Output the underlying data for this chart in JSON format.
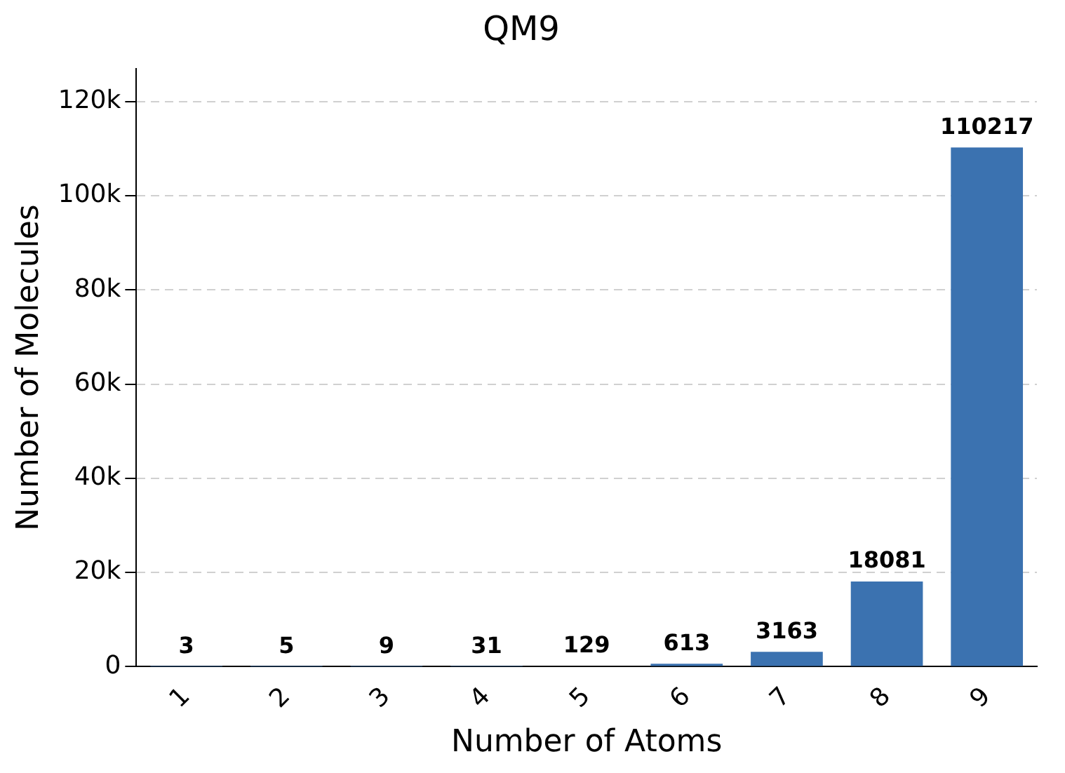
{
  "chart_data": {
    "type": "bar",
    "title": "QM9",
    "xlabel": "Number of Atoms",
    "ylabel": "Number of Molecules",
    "categories": [
      "1",
      "2",
      "3",
      "4",
      "5",
      "6",
      "7",
      "8",
      "9"
    ],
    "values": [
      3,
      5,
      9,
      31,
      129,
      613,
      3163,
      18081,
      110217
    ],
    "color": "#3b72b0",
    "ylim": [
      0,
      127000
    ],
    "yticks": [
      0,
      {
        "value": 20000,
        "label": "20k"
      },
      {
        "value": 40000,
        "label": "40k"
      },
      {
        "value": 60000,
        "label": "60k"
      },
      {
        "value": 80000,
        "label": "80k"
      },
      {
        "value": 100000,
        "label": "100k"
      },
      {
        "value": 120000,
        "label": "120k"
      }
    ],
    "grid": "y",
    "data_labels": true,
    "legend": false
  }
}
